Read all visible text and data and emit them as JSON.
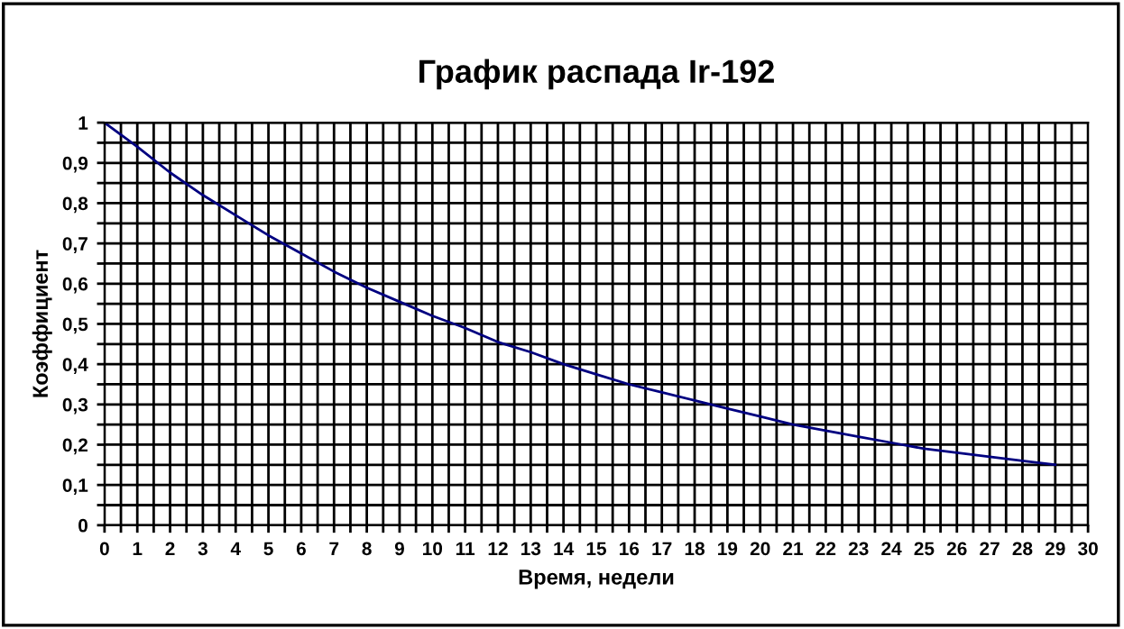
{
  "chart_data": {
    "type": "line",
    "title": "График распада Ir-192",
    "xlabel": "Время, недели",
    "ylabel": "Коэффициент",
    "x": [
      0,
      1,
      2,
      3,
      4,
      5,
      6,
      7,
      8,
      9,
      10,
      11,
      12,
      13,
      14,
      15,
      16,
      17,
      18,
      19,
      20,
      21,
      22,
      23,
      24,
      25,
      26,
      27,
      28,
      29
    ],
    "series": [
      {
        "color": "#000080",
        "values": [
          1,
          0.94,
          0.876,
          0.82,
          0.77,
          0.72,
          0.675,
          0.63,
          0.59,
          0.555,
          0.52,
          0.49,
          0.455,
          0.43,
          0.4,
          0.375,
          0.35,
          0.33,
          0.31,
          0.29,
          0.27,
          0.25,
          0.235,
          0.22,
          0.205,
          0.19,
          0.18,
          0.17,
          0.16,
          0.15
        ]
      }
    ],
    "xlim": [
      0,
      30
    ],
    "ylim": [
      0,
      1
    ],
    "xticks": [
      0,
      {
        "value": 0.5,
        "label": null
      },
      1,
      {
        "value": 1.5,
        "label": null
      },
      2,
      {
        "value": 2.5,
        "label": null
      },
      3,
      {
        "value": 3.5,
        "label": null
      },
      4,
      {
        "value": 4.5,
        "label": null
      },
      5,
      {
        "value": 5.5,
        "label": null
      },
      6,
      {
        "value": 6.5,
        "label": null
      },
      7,
      {
        "value": 7.5,
        "label": null
      },
      8,
      {
        "value": 8.5,
        "label": null
      },
      9,
      {
        "value": 9.5,
        "label": null
      },
      10,
      {
        "value": 10.5,
        "label": null
      },
      11,
      {
        "value": 11.5,
        "label": null
      },
      12,
      {
        "value": 12.5,
        "label": null
      },
      13,
      {
        "value": 13.5,
        "label": null
      },
      14,
      {
        "value": 14.5,
        "label": null
      },
      15,
      {
        "value": 15.5,
        "label": null
      },
      16,
      {
        "value": 16.5,
        "label": null
      },
      17,
      {
        "value": 17.5,
        "label": null
      },
      18,
      {
        "value": 18.5,
        "label": null
      },
      19,
      {
        "value": 19.5,
        "label": null
      },
      20,
      {
        "value": 20.5,
        "label": null
      },
      21,
      {
        "value": 21.5,
        "label": null
      },
      22,
      {
        "value": 22.5,
        "label": null
      },
      23,
      {
        "value": 23.5,
        "label": null
      },
      24,
      {
        "value": 24.5,
        "label": null
      },
      25,
      {
        "value": 25.5,
        "label": null
      },
      26,
      {
        "value": 26.5,
        "label": null
      },
      27,
      {
        "value": 27.5,
        "label": null
      },
      28,
      {
        "value": 28.5,
        "label": null
      },
      29,
      {
        "value": 29.5,
        "label": null
      },
      30
    ],
    "yticks": [
      0,
      {
        "value": 0.05,
        "label": null
      },
      {
        "value": 0.1,
        "label": "0,1"
      },
      {
        "value": 0.15,
        "label": null
      },
      {
        "value": 0.2,
        "label": "0,2"
      },
      {
        "value": 0.25,
        "label": null
      },
      {
        "value": 0.3,
        "label": "0,3"
      },
      {
        "value": 0.35,
        "label": null
      },
      {
        "value": 0.4,
        "label": "0,4"
      },
      {
        "value": 0.45,
        "label": null
      },
      {
        "value": 0.5,
        "label": "0,5"
      },
      {
        "value": 0.55,
        "label": null
      },
      {
        "value": 0.6,
        "label": "0,6"
      },
      {
        "value": 0.65,
        "label": null
      },
      {
        "value": 0.7,
        "label": "0,7"
      },
      {
        "value": 0.75,
        "label": null
      },
      {
        "value": 0.8,
        "label": "0,8"
      },
      {
        "value": 0.85,
        "label": null
      },
      {
        "value": 0.9,
        "label": "0,9"
      },
      {
        "value": 0.95,
        "label": null
      },
      1
    ],
    "grid": true,
    "marker": "none",
    "line_style": "solid"
  }
}
